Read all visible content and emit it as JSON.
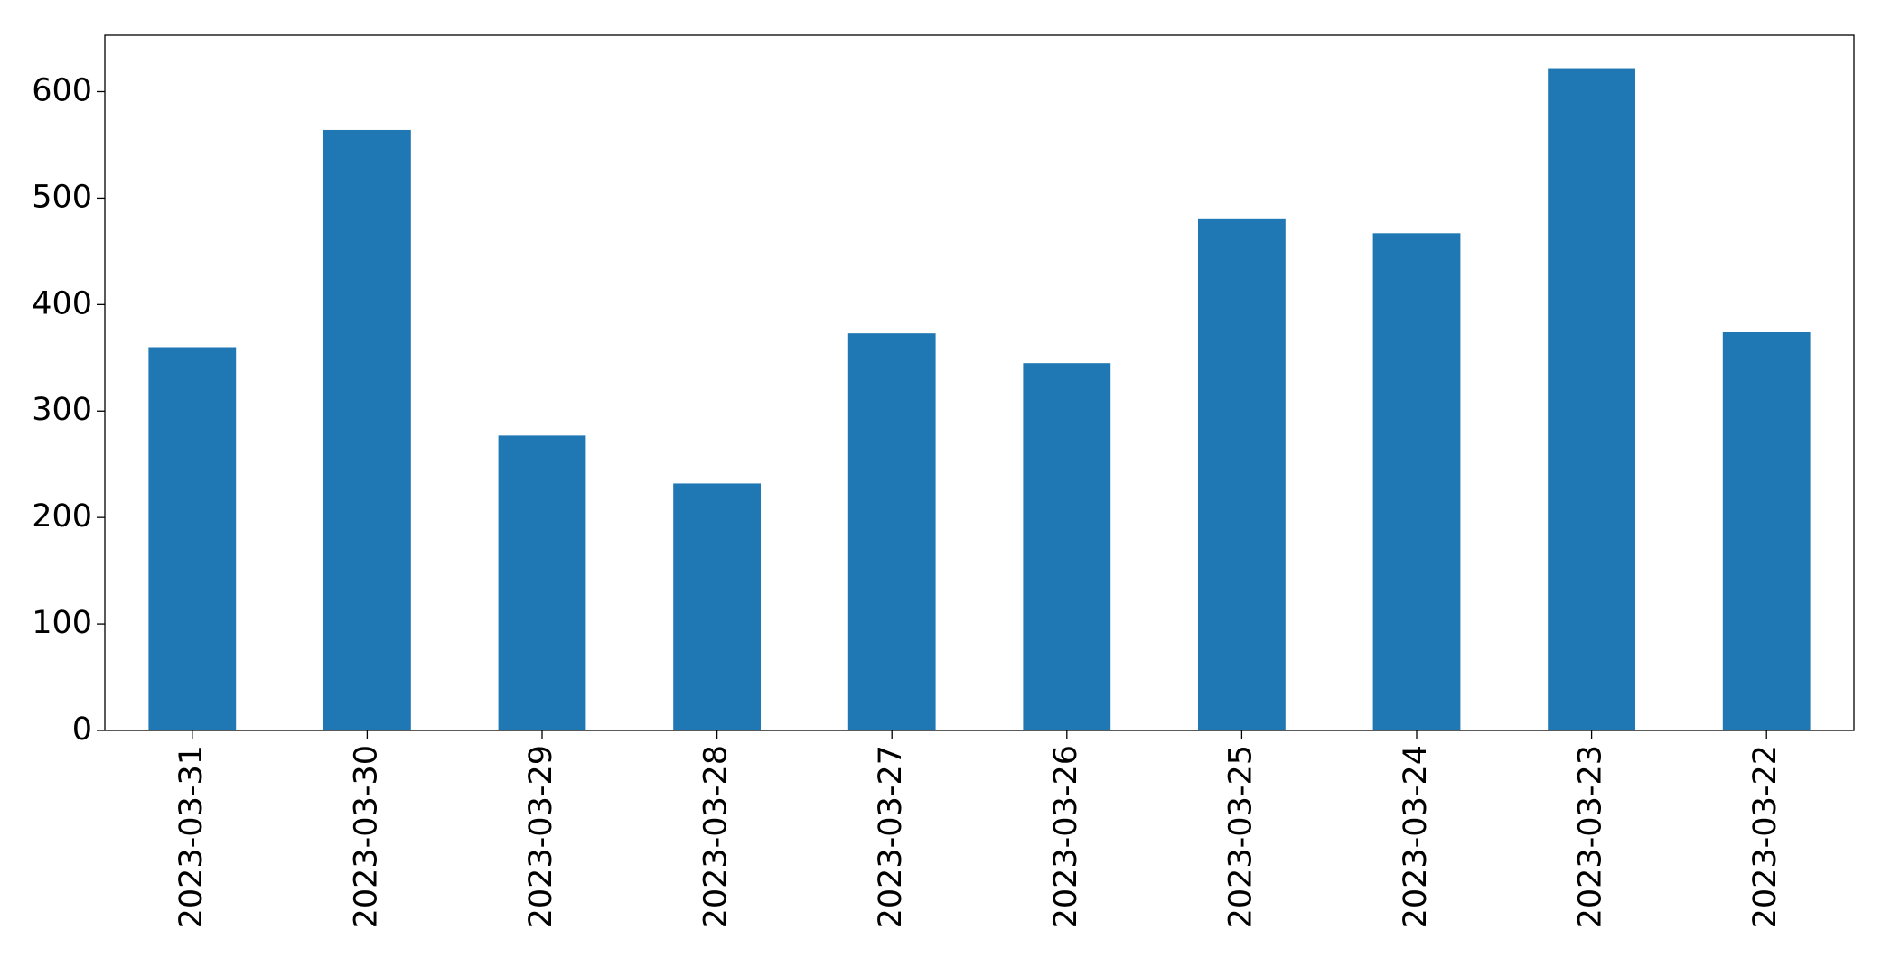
{
  "chart_data": {
    "type": "bar",
    "categories": [
      "2023-03-31",
      "2023-03-30",
      "2023-03-29",
      "2023-03-28",
      "2023-03-27",
      "2023-03-26",
      "2023-03-25",
      "2023-03-24",
      "2023-03-23",
      "2023-03-22"
    ],
    "values": [
      360,
      564,
      277,
      232,
      373,
      345,
      481,
      467,
      622,
      374
    ],
    "color": "#1f77b4",
    "ylim": [
      0,
      653
    ],
    "yticks": [
      0,
      100,
      200,
      300,
      400,
      500,
      600
    ],
    "grid": false
  }
}
